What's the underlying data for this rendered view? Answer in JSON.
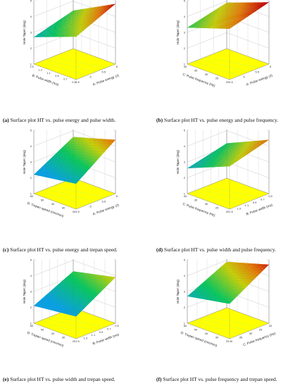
{
  "chart_data": [
    {
      "type": "surface",
      "caption_letter": "(a)",
      "caption_text": "Surface plot HT vs. pulse energy and pulse width.",
      "zlabel": "Hole Taper (deg)",
      "xlabel": "A: Pulse energy (J)",
      "ylabel": "B: Pulse width (ms)",
      "z_ticks": [
        "1",
        "2",
        "3",
        "4",
        "5"
      ],
      "x_ticks": [
        "4.5",
        "5",
        "5.5",
        "6"
      ],
      "y_ticks": [
        "0.5",
        "0.7",
        "0.9",
        "1.1",
        "1.3",
        "1.5"
      ],
      "zlim": [
        1,
        5
      ],
      "corner_z": [
        3.7,
        4.8,
        2.7,
        3.4
      ]
    },
    {
      "type": "surface",
      "caption_letter": "(b)",
      "caption_text": "Surface plot HT vs. pulse energy and pulse frequency.",
      "zlabel": "Hole Taper (deg)",
      "xlabel": "A: Pulse energy (J)",
      "ylabel": "C: Pulse frequency (Hz)",
      "z_ticks": [
        "1",
        "2",
        "3",
        "4",
        "5"
      ],
      "x_ticks": [
        "4.5",
        "5",
        "5.5",
        "6"
      ],
      "y_ticks": [
        "20",
        "25",
        "30",
        "35",
        "40"
      ],
      "zlim": [
        1,
        5
      ],
      "corner_z": [
        4.2,
        4.9,
        3.3,
        3.9
      ]
    },
    {
      "type": "surface",
      "caption_letter": "(c)",
      "caption_text": "Surface plot HT vs. pulse energy and trepan speed.",
      "zlabel": "Hole Taper (deg)",
      "xlabel": "A: Pulse energy (J)",
      "ylabel": "D: Trepan speed (mm/min)",
      "z_ticks": [
        "1",
        "2",
        "3",
        "4",
        "5"
      ],
      "x_ticks": [
        "4.5",
        "5",
        "5.5",
        "6"
      ],
      "y_ticks": [
        "20",
        "30",
        "40",
        "50",
        "60"
      ],
      "zlim": [
        1,
        5
      ],
      "corner_z": [
        2.6,
        4.4,
        2.2,
        3.6
      ]
    },
    {
      "type": "surface",
      "caption_letter": "(d)",
      "caption_text": "Surface plot HT vs. pulse width and pulse frequency.",
      "zlabel": "Hole Taper (deg)",
      "xlabel": "B: Pulse width (ms)",
      "ylabel": "C: Pulse frequency (Hz)",
      "z_ticks": [
        "1",
        "2",
        "3",
        "4",
        "5"
      ],
      "x_ticks": [
        "1.5",
        "1.3",
        "1.1",
        "0.9",
        "0.7",
        "0.5"
      ],
      "y_ticks": [
        "20",
        "25",
        "30",
        "35",
        "40"
      ],
      "zlim": [
        1,
        5
      ],
      "corner_z": [
        3.7,
        4.4,
        2.6,
        3.2
      ]
    },
    {
      "type": "surface",
      "caption_letter": "(e)",
      "caption_text": "Surface plot HT vs. pulse width and trepan speed.",
      "zlabel": "Hole Taper (deg)",
      "xlabel": "B: Pulse width (ms)",
      "ylabel": "D: Trepan speed (mm/min)",
      "z_ticks": [
        "1",
        "2",
        "3",
        "4",
        "5"
      ],
      "x_ticks": [
        "1.5",
        "1.3",
        "1.1",
        "0.9",
        "0.7",
        "0.5"
      ],
      "y_ticks": [
        "20",
        "30",
        "40",
        "50",
        "60"
      ],
      "zlim": [
        1,
        5
      ],
      "corner_z": [
        2.4,
        3.9,
        2.1,
        3.3
      ]
    },
    {
      "type": "surface",
      "caption_letter": "(f)",
      "caption_text": "Surface plot HT vs. pulse frequency and trepan speed.",
      "zlabel": "Hole Taper (deg)",
      "xlabel": "C: Pulse frequency (Hz)",
      "ylabel": "D: Trepan speed (mm/min)",
      "z_ticks": [
        "1",
        "2",
        "3",
        "4",
        "5"
      ],
      "x_ticks": [
        "40",
        "35",
        "30",
        "25",
        "20"
      ],
      "y_ticks": [
        "20",
        "30",
        "40",
        "50",
        "60"
      ],
      "zlim": [
        1,
        5
      ],
      "corner_z": [
        3.2,
        4.7,
        2.7,
        3.9
      ]
    }
  ]
}
